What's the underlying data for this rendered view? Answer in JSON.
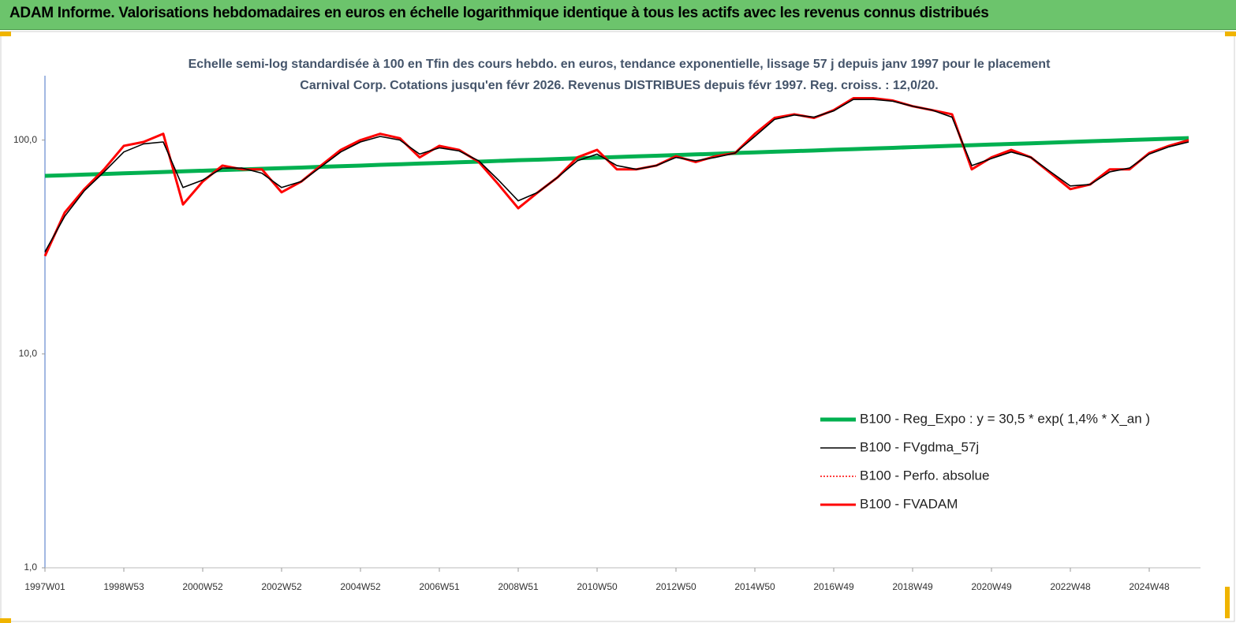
{
  "chart_data": {
    "type": "line",
    "title": "ADAM Informe. Valorisations hebdomadaires en euros en échelle logarithmique identique à tous les actifs avec les revenus connus distribués",
    "subtitle": "Echelle semi-log standardisée à 100 en Tfin des cours hebdo. en euros, tendance exponentielle, lissage 57 j depuis janv 1997 pour le placement Carnival Corp. Cotations jusqu'en févr 2026. Revenus DISTRIBUES depuis févr 1997. Reg. croiss. : 12,0/20.",
    "categories": [
      "1997W01",
      null,
      null,
      null,
      "1998W53",
      null,
      null,
      null,
      "2000W52",
      null,
      null,
      null,
      "2002W52",
      null,
      null,
      null,
      "2004W52",
      null,
      null,
      null,
      "2006W51",
      null,
      null,
      null,
      "2008W51",
      null,
      null,
      null,
      "2010W50",
      null,
      null,
      null,
      "2012W50",
      null,
      null,
      null,
      "2014W50",
      null,
      null,
      null,
      "2016W49",
      null,
      null,
      null,
      "2018W49",
      null,
      null,
      null,
      "2020W49",
      null,
      null,
      null,
      "2022W48",
      null,
      null,
      null,
      "2024W48",
      null,
      null
    ],
    "y_log": true,
    "ylim": [
      1,
      200
    ],
    "yticks": [
      {
        "value": 1,
        "label": "1,0"
      },
      {
        "value": 10,
        "label": "10,0"
      },
      {
        "value": 100,
        "label": "100,0"
      }
    ],
    "legend": "lower right",
    "series": [
      {
        "name": "B100 - Reg_Expo : y = 30,5 *  exp( 1,4% *  X_an )",
        "color": "#00b050",
        "line_style": "solid",
        "values": [
          68,
          68.5,
          69,
          69.4,
          69.9,
          70.4,
          70.9,
          71.4,
          71.9,
          72.4,
          72.9,
          73.4,
          73.9,
          74.4,
          75,
          75.5,
          76,
          76.6,
          77.1,
          77.7,
          78.2,
          78.8,
          79.3,
          79.9,
          80.5,
          81,
          81.6,
          82.2,
          82.8,
          83.3,
          83.9,
          84.5,
          85.1,
          85.7,
          86.3,
          87,
          87.6,
          88.2,
          88.8,
          89.4,
          90.1,
          90.7,
          91.4,
          92,
          92.7,
          93.3,
          94,
          94.6,
          95.3,
          96,
          96.6,
          97.3,
          98,
          98.7,
          99.4,
          100.1,
          100.8,
          101.5,
          102.2
        ]
      },
      {
        "name": "B100 - FVgdma_57j",
        "color": "#000000",
        "line_style": "solid",
        "values": [
          30,
          44,
          58,
          71,
          88,
          96,
          98,
          60,
          65,
          74,
          74,
          70,
          60,
          64,
          75,
          88,
          98,
          104,
          100,
          86,
          92,
          89,
          80,
          65,
          52,
          57,
          67,
          80,
          86,
          76,
          73,
          76,
          83,
          80,
          83,
          87,
          104,
          125,
          131,
          128,
          137,
          155,
          155,
          152,
          144,
          138,
          128,
          76,
          82,
          88,
          83,
          71,
          61,
          62,
          71,
          74,
          86,
          93,
          98
        ]
      },
      {
        "name": "B100 - Perfo. absolue",
        "color": "#ff0000",
        "line_style": "dotted",
        "values": [
          28.7,
          45.8,
          59,
          73,
          94,
          98,
          107,
          50,
          64,
          76,
          73,
          73,
          57,
          64,
          76,
          90,
          100,
          107,
          102,
          83,
          94,
          90,
          79,
          62,
          48,
          57,
          67,
          83,
          90,
          73,
          73,
          76,
          84,
          79,
          84,
          87,
          107,
          127,
          132,
          127,
          138,
          157,
          157,
          153,
          144,
          138,
          132,
          73,
          83,
          90,
          83,
          70,
          59,
          62,
          73,
          73,
          87,
          94,
          100
        ]
      },
      {
        "name": "B100 - FVADAM",
        "color": "#ff0000",
        "line_style": "solid",
        "values": [
          28.7,
          45.8,
          59,
          73,
          94,
          98,
          107,
          50,
          64,
          76,
          73,
          73,
          57,
          64,
          76,
          90,
          100,
          107,
          102,
          83,
          94,
          90,
          79,
          62,
          48,
          57,
          67,
          83,
          90,
          73,
          73,
          76,
          84,
          79,
          84,
          87,
          107,
          127,
          132,
          127,
          138,
          157,
          157,
          153,
          144,
          138,
          132,
          73,
          83,
          90,
          83,
          70,
          59,
          62,
          73,
          73,
          87,
          94,
          100
        ]
      }
    ]
  }
}
